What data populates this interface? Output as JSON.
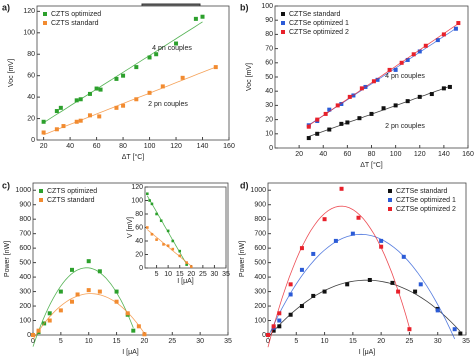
{
  "chart_data": [
    {
      "type": "scatter",
      "label": "a)",
      "xlabel": "ΔT [°C]",
      "ylabel": "Voc [mV]",
      "xlim": [
        15,
        160
      ],
      "xticks": [
        20,
        40,
        60,
        80,
        100,
        120,
        140,
        160
      ],
      "ylim": [
        0,
        125
      ],
      "yticks": [
        0,
        20,
        40,
        60,
        80,
        100,
        120
      ],
      "legend": "upper-left",
      "fit": "linear",
      "series": [
        {
          "name": "CZTS optimized",
          "color": "#2ca02c",
          "x": [
            20,
            30,
            33,
            45,
            48,
            55,
            60,
            63,
            75,
            80,
            90,
            100,
            105,
            120,
            135,
            140
          ],
          "values": [
            17,
            27,
            30,
            37,
            38,
            43,
            48,
            47,
            57,
            60,
            68,
            77,
            80,
            90,
            113,
            115
          ]
        },
        {
          "name": "CZTS standard",
          "color": "#f28b30",
          "x": [
            20,
            30,
            35,
            45,
            48,
            55,
            62,
            75,
            80,
            90,
            100,
            110,
            125,
            150
          ],
          "values": [
            7,
            10,
            13,
            17,
            18,
            23,
            22,
            30,
            32,
            38,
            44,
            50,
            58,
            68
          ]
        }
      ],
      "annotations": [
        {
          "text": "4 pn couples",
          "color": "#2ca02c"
        },
        {
          "text": "2 pn couples",
          "color": "#f28b30"
        }
      ]
    },
    {
      "type": "scatter",
      "label": "b)",
      "xlabel": "ΔT [°C]",
      "ylabel": "Voc [mV]",
      "xlim": [
        0,
        160
      ],
      "xticks": [
        20,
        40,
        60,
        80,
        100,
        120,
        140,
        160
      ],
      "ylim": [
        0,
        100
      ],
      "yticks": [
        0,
        10,
        20,
        30,
        40,
        50,
        60,
        70,
        80,
        90,
        100
      ],
      "legend": "upper-left",
      "fit": "linear",
      "series": [
        {
          "name": "CZTSe standard",
          "color": "#111111",
          "x": [
            28,
            35,
            45,
            55,
            60,
            70,
            80,
            90,
            100,
            110,
            120,
            130,
            140,
            145
          ],
          "values": [
            7,
            10,
            13,
            17,
            18,
            21,
            24,
            28,
            30,
            33,
            36,
            38,
            42,
            43
          ]
        },
        {
          "name": "CZTSe optimized 1",
          "color": "#2b5bd7",
          "x": [
            28,
            35,
            45,
            55,
            65,
            75,
            85,
            100,
            110,
            120,
            135,
            150
          ],
          "values": [
            16,
            19,
            27,
            31,
            37,
            43,
            48,
            55,
            62,
            68,
            76,
            84
          ]
        },
        {
          "name": "CZTSe optimized 2",
          "color": "#e8202a",
          "x": [
            28,
            35,
            42,
            52,
            62,
            72,
            82,
            95,
            105,
            115,
            125,
            140,
            152
          ],
          "values": [
            15,
            20,
            24,
            30,
            36,
            42,
            47,
            55,
            60,
            66,
            72,
            80,
            88
          ]
        }
      ],
      "annotations": [
        {
          "text": "4 pn couples",
          "color": "#2b5bd7"
        },
        {
          "text": "2 pn couples",
          "color": "#111111"
        }
      ]
    },
    {
      "type": "scatter",
      "label": "c)",
      "xlabel": "I [μA]",
      "ylabel": "Power [nW]",
      "xlim": [
        0,
        35
      ],
      "xticks": [
        0,
        5,
        10,
        15,
        20,
        25,
        30,
        35
      ],
      "ylim": [
        0,
        1050
      ],
      "yticks": [
        0,
        100,
        200,
        300,
        400,
        500,
        600,
        700,
        800,
        900,
        1000
      ],
      "legend": "upper-left",
      "fit": "quadratic",
      "series": [
        {
          "name": "CZTS optimized",
          "color": "#2ca02c",
          "x": [
            0,
            1,
            2,
            3,
            5,
            7,
            10,
            12,
            15,
            17,
            18
          ],
          "values": [
            0,
            20,
            80,
            150,
            300,
            450,
            510,
            440,
            300,
            140,
            30
          ]
        },
        {
          "name": "CZTS standard",
          "color": "#f28b30",
          "x": [
            0,
            1,
            3,
            5,
            7,
            8,
            10,
            12,
            15,
            17,
            19,
            20
          ],
          "values": [
            0,
            30,
            100,
            170,
            230,
            280,
            310,
            300,
            230,
            150,
            60,
            5
          ]
        }
      ]
    },
    {
      "type": "scatter",
      "xlabel": "I [μA]",
      "ylabel": "V [mV]",
      "xlim": [
        0,
        35
      ],
      "xticks": [
        5,
        10,
        15,
        20,
        25,
        30,
        35
      ],
      "ylim": [
        0,
        120
      ],
      "yticks": [
        0,
        20,
        40,
        60,
        80,
        100,
        120
      ],
      "fit": "linear",
      "series": [
        {
          "color": "#2ca02c",
          "x": [
            1,
            2,
            3,
            5,
            7,
            10,
            12,
            15,
            18
          ],
          "values": [
            110,
            100,
            95,
            80,
            70,
            55,
            40,
            25,
            5
          ]
        },
        {
          "color": "#f28b30",
          "x": [
            1,
            3,
            5,
            8,
            10,
            12,
            15,
            18,
            20
          ],
          "values": [
            60,
            50,
            42,
            35,
            33,
            28,
            18,
            8,
            2
          ]
        }
      ]
    },
    {
      "type": "scatter",
      "label": "d)",
      "xlabel": "I [μA]",
      "ylabel": "Power [nW]",
      "xlim": [
        0,
        35
      ],
      "xticks": [
        0,
        5,
        10,
        15,
        20,
        25,
        30,
        35
      ],
      "ylim": [
        0,
        1050
      ],
      "yticks": [
        0,
        100,
        200,
        300,
        400,
        500,
        600,
        700,
        800,
        900,
        1000
      ],
      "legend": "upper-right",
      "fit": "quadratic",
      "series": [
        {
          "name": "CZTSe standard",
          "color": "#111111",
          "x": [
            0,
            1,
            2,
            4,
            6,
            8,
            10,
            14,
            18,
            22,
            26,
            30,
            34
          ],
          "values": [
            0,
            30,
            60,
            140,
            200,
            270,
            300,
            350,
            380,
            360,
            300,
            180,
            10
          ]
        },
        {
          "name": "CZTSe optimized 1",
          "color": "#2b5bd7",
          "x": [
            0,
            1,
            2,
            4,
            6,
            8,
            12,
            15,
            20,
            24,
            27,
            30,
            33
          ],
          "values": [
            0,
            50,
            100,
            280,
            450,
            560,
            650,
            700,
            650,
            540,
            350,
            170,
            40
          ]
        },
        {
          "name": "CZTSe optimized 2",
          "color": "#e8202a",
          "x": [
            0,
            1,
            2,
            4,
            6,
            10,
            13,
            16,
            20,
            23,
            25
          ],
          "values": [
            0,
            60,
            150,
            350,
            600,
            800,
            1010,
            810,
            610,
            300,
            40
          ]
        }
      ]
    }
  ]
}
